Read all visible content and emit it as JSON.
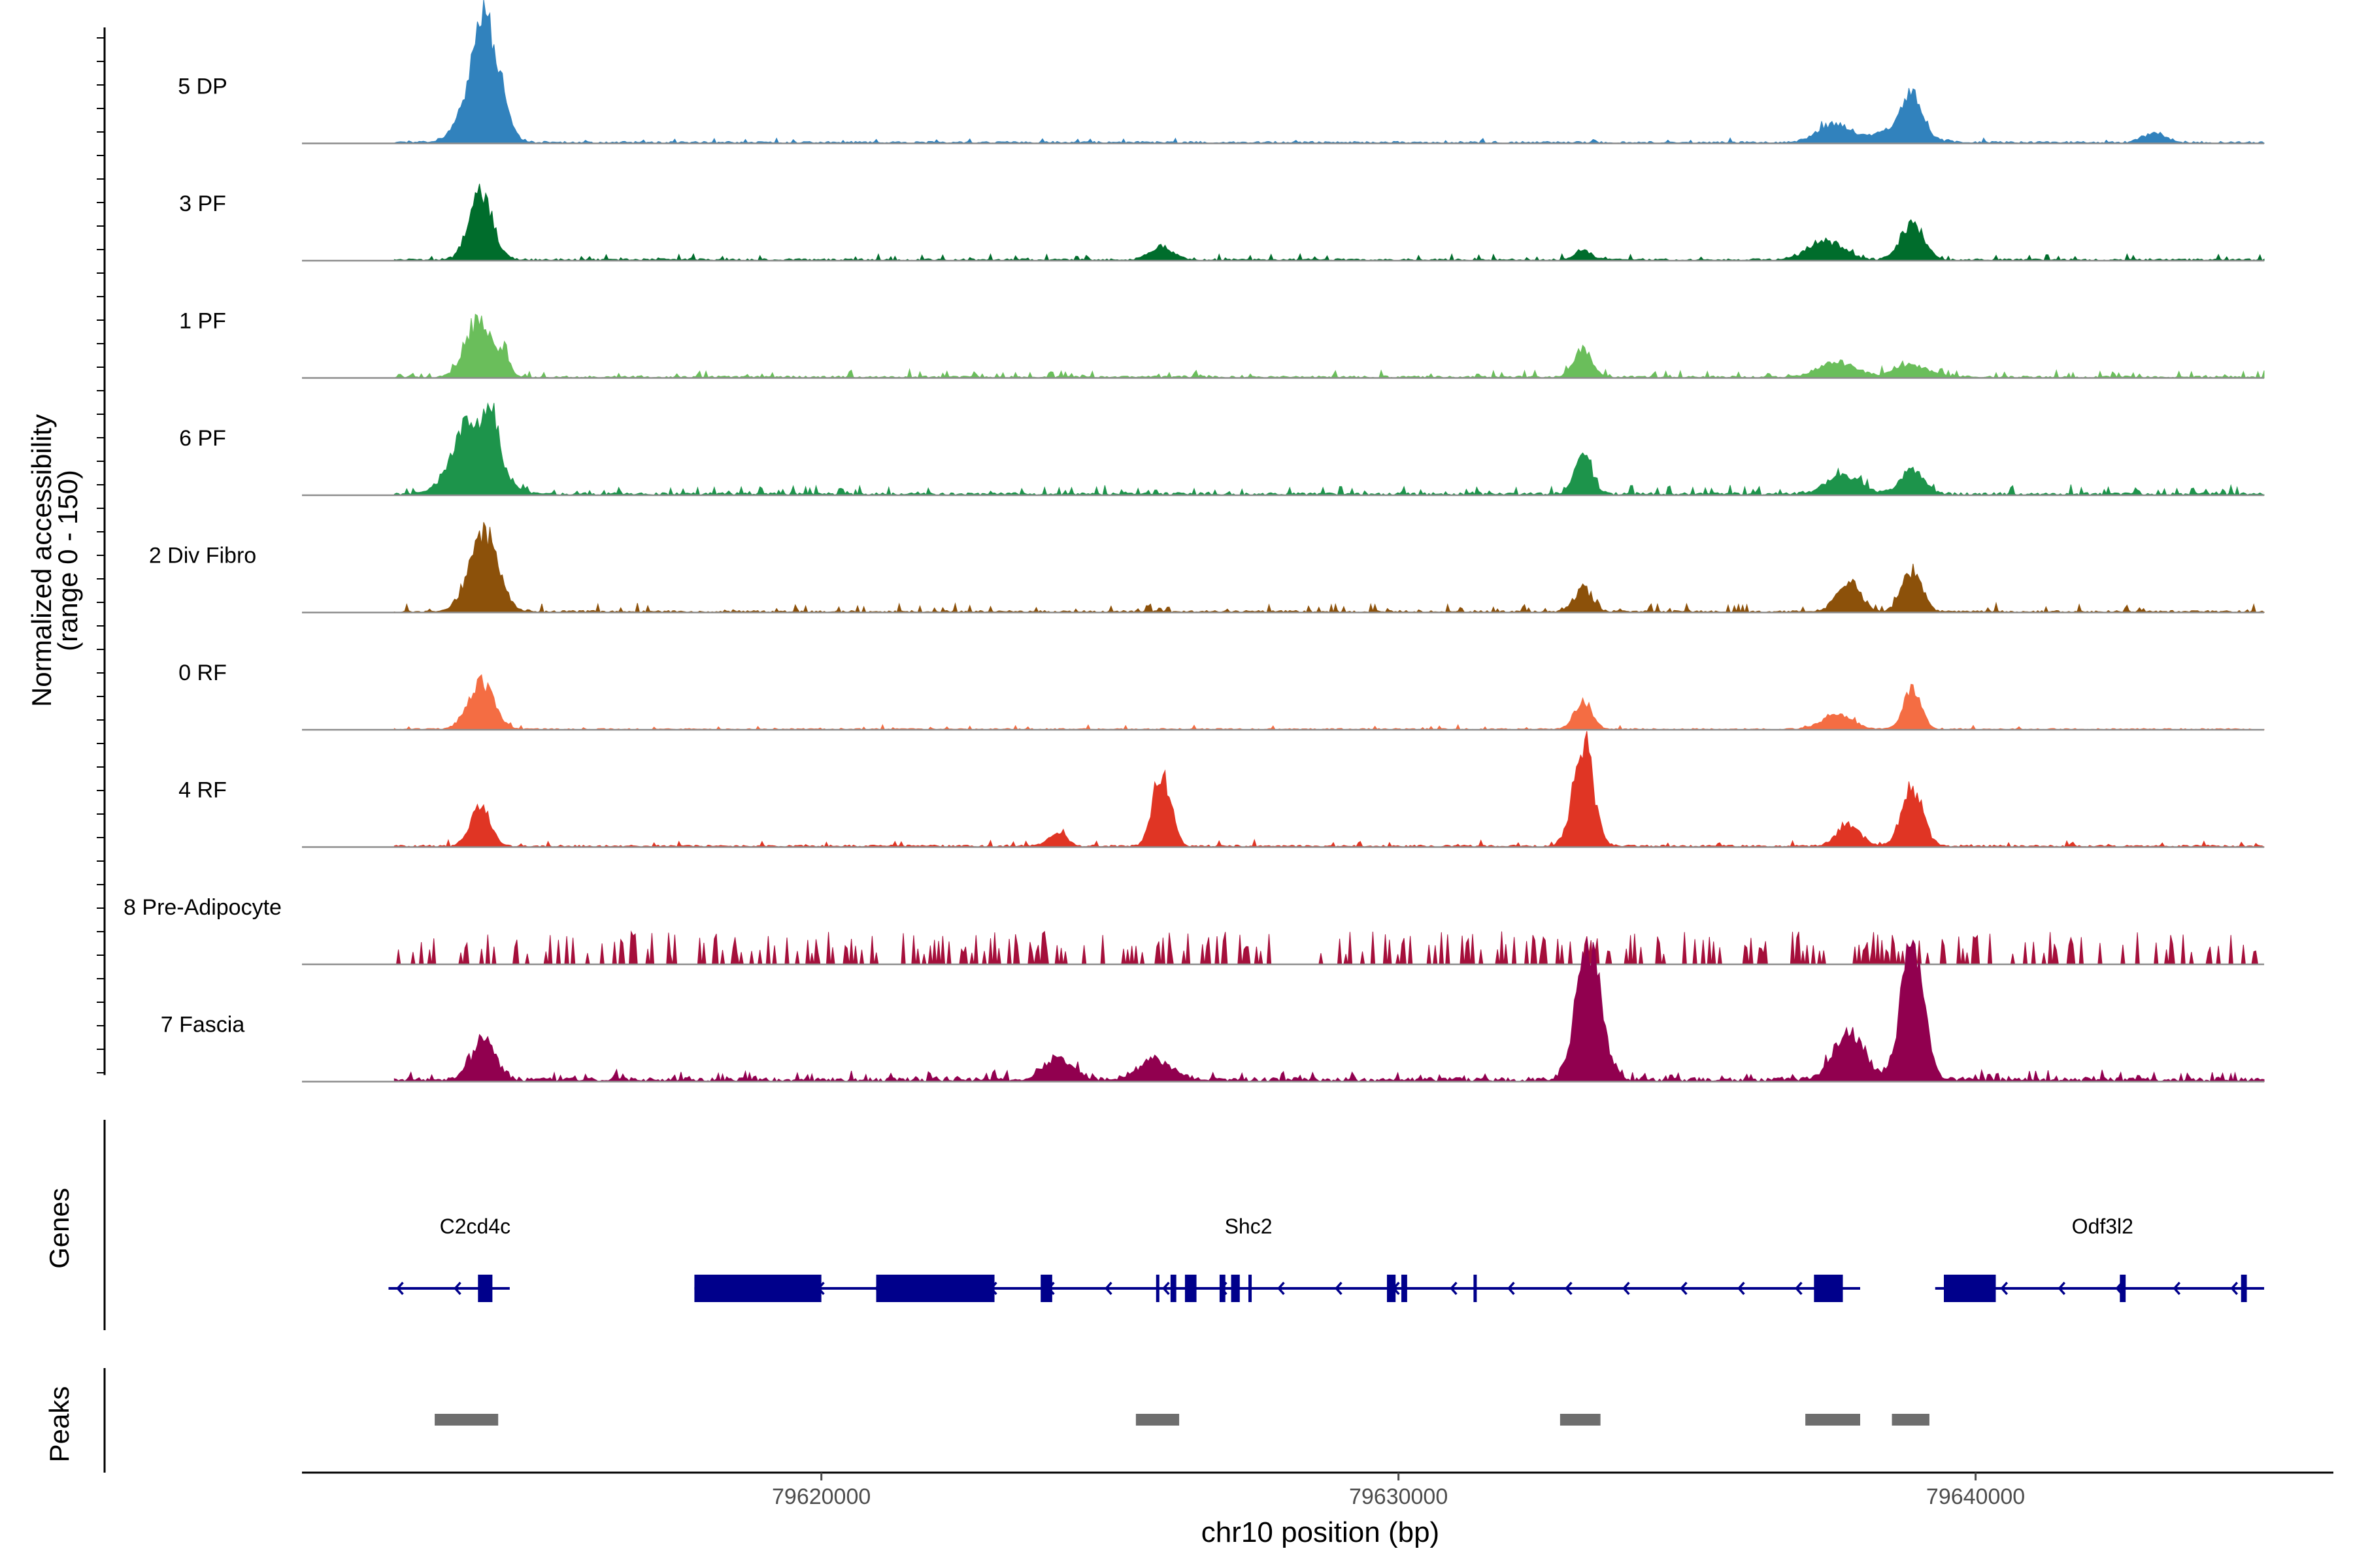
{
  "colors": {
    "baseline": "#8c8c8c",
    "axis": "#000000",
    "gene": "#00008b",
    "peak": "#6e6e6e",
    "tick_text": "#4d4d4d"
  },
  "chart_data": {
    "type": "area",
    "title": "",
    "ylabel_line1": "Normalized accessibility",
    "ylabel_line2": "(range 0 - 150)",
    "xlabel": "chr10 position (bp)",
    "ylim": [
      0,
      150
    ],
    "xlim": [
      79611000,
      79646200
    ],
    "region": [
      79612600,
      79645000
    ],
    "x_ticks": [
      79620000,
      79630000,
      79640000
    ],
    "x_tick_labels": [
      "79620000",
      "79630000",
      "79640000"
    ],
    "tracks": [
      {
        "name": "5 DP",
        "color": "#3182bd",
        "type": "smooth",
        "peaks": [
          [
            79614200,
            140,
            230
          ],
          [
            79614050,
            50,
            300
          ],
          [
            79637550,
            28,
            280
          ],
          [
            79638900,
            55,
            160
          ],
          [
            79638700,
            20,
            400
          ],
          [
            79643100,
            14,
            200
          ]
        ],
        "noise": 3,
        "spike_rate": 0.06,
        "spike_max": 6
      },
      {
        "name": "3 PF",
        "color": "#006d2c",
        "type": "smooth",
        "peaks": [
          [
            79614100,
            95,
            200
          ],
          [
            79625900,
            18,
            200
          ],
          [
            79633200,
            14,
            140
          ],
          [
            79637400,
            28,
            300
          ],
          [
            79638900,
            50,
            200
          ]
        ],
        "noise": 3,
        "spike_rate": 0.1,
        "spike_max": 8
      },
      {
        "name": "1 PF",
        "color": "#6abe5b",
        "type": "smooth",
        "peaks": [
          [
            79614050,
            80,
            220
          ],
          [
            79614500,
            30,
            100
          ],
          [
            79633200,
            38,
            160
          ],
          [
            79637600,
            22,
            300
          ],
          [
            79638900,
            18,
            300
          ]
        ],
        "noise": 3,
        "spike_rate": 0.14,
        "spike_max": 10
      },
      {
        "name": "6 PF",
        "color": "#1d944b",
        "type": "smooth",
        "peaks": [
          [
            79614000,
            110,
            350
          ],
          [
            79614300,
            50,
            100
          ],
          [
            79633200,
            55,
            150
          ],
          [
            79637700,
            30,
            280
          ],
          [
            79638900,
            35,
            200
          ]
        ],
        "noise": 4,
        "spike_rate": 0.16,
        "spike_max": 12
      },
      {
        "name": "2 Div Fibro",
        "color": "#8c510a",
        "type": "smooth",
        "peaks": [
          [
            79614150,
            115,
            250
          ],
          [
            79633200,
            35,
            150
          ],
          [
            79637800,
            45,
            200
          ],
          [
            79638900,
            60,
            170
          ]
        ],
        "noise": 3,
        "spike_rate": 0.12,
        "spike_max": 12
      },
      {
        "name": "0 RF",
        "color": "#f46d43",
        "type": "smooth",
        "peaks": [
          [
            79614100,
            68,
            220
          ],
          [
            79633200,
            40,
            150
          ],
          [
            79637600,
            22,
            250
          ],
          [
            79638900,
            58,
            150
          ]
        ],
        "noise": 2,
        "spike_rate": 0.06,
        "spike_max": 6
      },
      {
        "name": "4 RF",
        "color": "#e03524",
        "type": "smooth",
        "peaks": [
          [
            79614100,
            58,
            170
          ],
          [
            79624100,
            20,
            150
          ],
          [
            79625900,
            110,
            150
          ],
          [
            79633200,
            150,
            170
          ],
          [
            79637800,
            32,
            200
          ],
          [
            79638900,
            85,
            180
          ]
        ],
        "noise": 3,
        "spike_rate": 0.06,
        "spike_max": 8
      },
      {
        "name": "8 Pre-Adipocyte",
        "color": "#a50f3b",
        "type": "spiky",
        "noise": 0,
        "spike_rate": 0.25,
        "spike_max": 48
      },
      {
        "name": "7 Fascia",
        "color": "#91004f",
        "type": "smooth",
        "peaks": [
          [
            79614150,
            60,
            200
          ],
          [
            79624100,
            30,
            250
          ],
          [
            79625800,
            28,
            300
          ],
          [
            79633300,
            195,
            210
          ],
          [
            79637800,
            70,
            260
          ],
          [
            79638900,
            190,
            200
          ]
        ],
        "noise": 6,
        "spike_rate": 0.2,
        "spike_max": 12
      }
    ],
    "genes_label": "Genes",
    "genes": [
      {
        "name": "C2cd4c",
        "label_x": 79614000,
        "start": 79612500,
        "end": 79614600,
        "strand": "-",
        "exons": [
          [
            79614050,
            79614300
          ]
        ],
        "cds": []
      },
      {
        "name": "Shc2",
        "label_x": 79627400,
        "start": 79617800,
        "end": 79638000,
        "strand": "-",
        "exons": [
          [
            79617800,
            79620000
          ],
          [
            79620950,
            79623000
          ],
          [
            79623800,
            79624000
          ],
          [
            79625800,
            79625850
          ],
          [
            79626050,
            79626150
          ],
          [
            79626300,
            79626500
          ],
          [
            79626900,
            79627000
          ],
          [
            79627100,
            79627250
          ],
          [
            79627400,
            79627450
          ],
          [
            79629800,
            79629950
          ],
          [
            79630050,
            79630150
          ],
          [
            79631300,
            79631350
          ],
          [
            79637200,
            79637700
          ]
        ],
        "cds": []
      },
      {
        "name": "Odf3l2",
        "label_x": 79642200,
        "start": 79639300,
        "end": 79645000,
        "strand": "-",
        "exons": [
          [
            79639450,
            79640350
          ],
          [
            79642500,
            79642600
          ],
          [
            79644600,
            79644700
          ]
        ],
        "cds": []
      }
    ],
    "peaks_label": "Peaks",
    "peaks": [
      [
        79613300,
        79614400
      ],
      [
        79625450,
        79626200
      ],
      [
        79632800,
        79633500
      ],
      [
        79637050,
        79638000
      ],
      [
        79638550,
        79639200
      ]
    ]
  }
}
